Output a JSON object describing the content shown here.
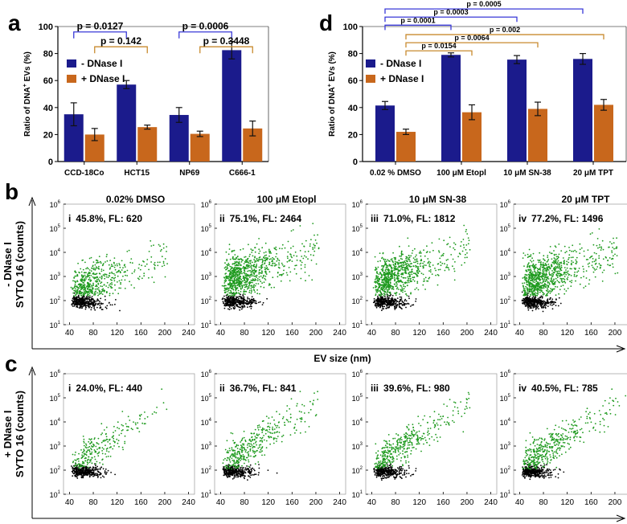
{
  "panel_letters": {
    "a": "a",
    "b": "b",
    "c": "c",
    "d": "d"
  },
  "legend": {
    "minus": "- DNase I",
    "plus": "+ DNase I"
  },
  "colors": {
    "minus": "#1b1b8c",
    "plus": "#c8671c",
    "green": "#1e9a1e",
    "black": "#000000",
    "sig_minus": "#3a3ad8",
    "sig_plus": "#c88a2e"
  },
  "chart_data": [
    {
      "id": "a",
      "type": "bar",
      "ylabel_pre": "Ratio of DNA",
      "ylabel_sup": "+",
      "ylabel_post": " EVs (%)",
      "ylim": [
        0,
        100
      ],
      "yticks": [
        0,
        20,
        40,
        60,
        80,
        100
      ],
      "categories": [
        "CCD-18Co",
        "HCT15",
        "NP69",
        "C666-1"
      ],
      "series": [
        {
          "name": "- DNase I",
          "values": [
            35,
            57,
            34.5,
            82.5
          ],
          "errors": [
            8.5,
            3,
            5.5,
            6.5
          ]
        },
        {
          "name": "+ DNase I",
          "values": [
            20,
            25.5,
            20.5,
            24.5
          ],
          "errors": [
            4.5,
            1.5,
            2,
            5.5
          ]
        }
      ],
      "annotations": [
        {
          "label": "p = 0.0127",
          "from": [
            0,
            0
          ],
          "to": [
            1,
            0
          ],
          "level": 96,
          "color": "minus"
        },
        {
          "label": "p = 0.142",
          "from": [
            0,
            1
          ],
          "to": [
            1,
            1
          ],
          "level": 85,
          "color": "plus"
        },
        {
          "label": "p = 0.0006",
          "from": [
            2,
            0
          ],
          "to": [
            3,
            0
          ],
          "level": 96,
          "color": "minus"
        },
        {
          "label": "p = 0.3448",
          "from": [
            2,
            1
          ],
          "to": [
            3,
            1
          ],
          "level": 85,
          "color": "plus"
        }
      ]
    },
    {
      "id": "d",
      "type": "bar",
      "ylabel_pre": "Ratio of DNA",
      "ylabel_sup": "+",
      "ylabel_post": " EVs (%)",
      "ylim": [
        0,
        100
      ],
      "yticks": [
        0,
        20,
        40,
        60,
        80,
        100
      ],
      "categories": [
        "0.02 % DMSO",
        "100 μM Etopl",
        "10 μM SN-38",
        "20 μM TPT"
      ],
      "series": [
        {
          "name": "- DNase I",
          "values": [
            41.5,
            79,
            75.5,
            76
          ],
          "errors": [
            3,
            1.5,
            3,
            4
          ]
        },
        {
          "name": "+ DNase I",
          "values": [
            22,
            36.5,
            39,
            42
          ],
          "errors": [
            2,
            5.5,
            5,
            4
          ]
        }
      ],
      "annotations": [
        {
          "label": "p = 0.0005",
          "from": [
            0,
            0
          ],
          "to": [
            3,
            0
          ],
          "level": 113,
          "color": "minus"
        },
        {
          "label": "p = 0.0003",
          "from": [
            0,
            0
          ],
          "to": [
            2,
            0
          ],
          "level": 107,
          "color": "minus"
        },
        {
          "label": "p = 0.0001",
          "from": [
            0,
            0
          ],
          "to": [
            1,
            0
          ],
          "level": 101,
          "color": "minus"
        },
        {
          "label": "p = 0.002",
          "from": [
            0,
            1
          ],
          "to": [
            3,
            1
          ],
          "level": 94,
          "color": "plus"
        },
        {
          "label": "p = 0.0064",
          "from": [
            0,
            1
          ],
          "to": [
            2,
            1
          ],
          "level": 88,
          "color": "plus"
        },
        {
          "label": "p = 0.0154",
          "from": [
            0,
            1
          ],
          "to": [
            1,
            1
          ],
          "level": 82,
          "color": "plus"
        }
      ]
    },
    {
      "id": "b",
      "type": "scatter",
      "row_label": "- DNase I",
      "ylabel": "SYTO 16 (counts)",
      "xlabel": "EV size (nm)",
      "xticks": [
        40,
        80,
        120,
        160,
        200,
        240
      ],
      "xlim": [
        30,
        250
      ],
      "yticks": [
        1,
        2,
        3,
        4,
        5,
        6
      ],
      "ylim_log10": [
        1,
        6
      ],
      "ytick_base": "10",
      "panels": [
        {
          "title": "0.02% DMSO",
          "numeral": "i",
          "stat": "45.8%, FL: 620",
          "percent_positive": 45.8,
          "fl": 620
        },
        {
          "title": "100 μM Etopl",
          "numeral": "ii",
          "stat": "75.1%, FL: 2464",
          "percent_positive": 75.1,
          "fl": 2464
        },
        {
          "title": "10 μM SN-38",
          "numeral": "iii",
          "stat": "71.0%, FL: 1812",
          "percent_positive": 71.0,
          "fl": 1812
        },
        {
          "title": "20 μM TPT",
          "numeral": "iv",
          "stat": "77.2%, FL: 1496",
          "percent_positive": 77.2,
          "fl": 1496
        }
      ]
    },
    {
      "id": "c",
      "type": "scatter",
      "row_label": "+ DNase I",
      "ylabel": "SYTO 16 (counts)",
      "xlabel": "EV size (nm)",
      "xticks": [
        40,
        80,
        120,
        160,
        200,
        240
      ],
      "xlim": [
        30,
        250
      ],
      "yticks": [
        1,
        2,
        3,
        4,
        5,
        6
      ],
      "ylim_log10": [
        1,
        6
      ],
      "ytick_base": "10",
      "panels": [
        {
          "numeral": "i",
          "stat": "24.0%, FL: 440",
          "percent_positive": 24.0,
          "fl": 440
        },
        {
          "numeral": "ii",
          "stat": "36.7%, FL: 841",
          "percent_positive": 36.7,
          "fl": 841
        },
        {
          "numeral": "iii",
          "stat": "39.6%, FL: 980",
          "percent_positive": 39.6,
          "fl": 980
        },
        {
          "numeral": "iv",
          "stat": "40.5%, FL: 785",
          "percent_positive": 40.5,
          "fl": 785
        }
      ]
    }
  ]
}
